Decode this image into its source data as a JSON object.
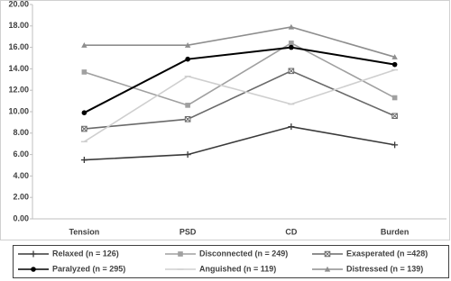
{
  "chart_data": {
    "type": "line",
    "categories": [
      "Tension",
      "PSD",
      "CD",
      "Burden"
    ],
    "ylim": [
      0,
      20
    ],
    "yticks": [
      {
        "value": 0,
        "label": "0.00"
      },
      {
        "value": 2,
        "label": "2.00"
      },
      {
        "value": 4,
        "label": "4.00"
      },
      {
        "value": 6,
        "label": "6.00"
      },
      {
        "value": 8,
        "label": "8.00"
      },
      {
        "value": 10,
        "label": "10.00"
      },
      {
        "value": 12,
        "label": "12.00"
      },
      {
        "value": 14,
        "label": "14.00"
      },
      {
        "value": 16,
        "label": "16.00"
      },
      {
        "value": 18,
        "label": "18.00"
      },
      {
        "value": 20,
        "label": "20.00"
      }
    ],
    "grid": false,
    "legend": "bottom",
    "series": [
      {
        "name": "Relaxed (n = 126)",
        "color": "#3a3a3a",
        "marker": "plus",
        "values": [
          5.5,
          6.0,
          8.6,
          6.9
        ]
      },
      {
        "name": "Disconnected (n = 249)",
        "color": "#a0a0a0",
        "marker": "square",
        "values": [
          13.7,
          10.6,
          16.4,
          11.3
        ]
      },
      {
        "name": "Exasperated (n =428)",
        "color": "#6a6a6a",
        "marker": "x",
        "values": [
          8.4,
          9.3,
          13.8,
          9.6
        ]
      },
      {
        "name": "Paralyzed (n = 295)",
        "color": "#000000",
        "marker": "circle",
        "values": [
          9.9,
          14.9,
          16.0,
          14.4
        ]
      },
      {
        "name": "Anguished (n = 119)",
        "color": "#cfcfcf",
        "marker": "dash",
        "values": [
          7.2,
          13.3,
          10.7,
          13.9
        ]
      },
      {
        "name": "Distressed (n = 139)",
        "color": "#8e8e8e",
        "marker": "triangle",
        "values": [
          16.2,
          16.2,
          17.9,
          15.1
        ]
      }
    ]
  }
}
